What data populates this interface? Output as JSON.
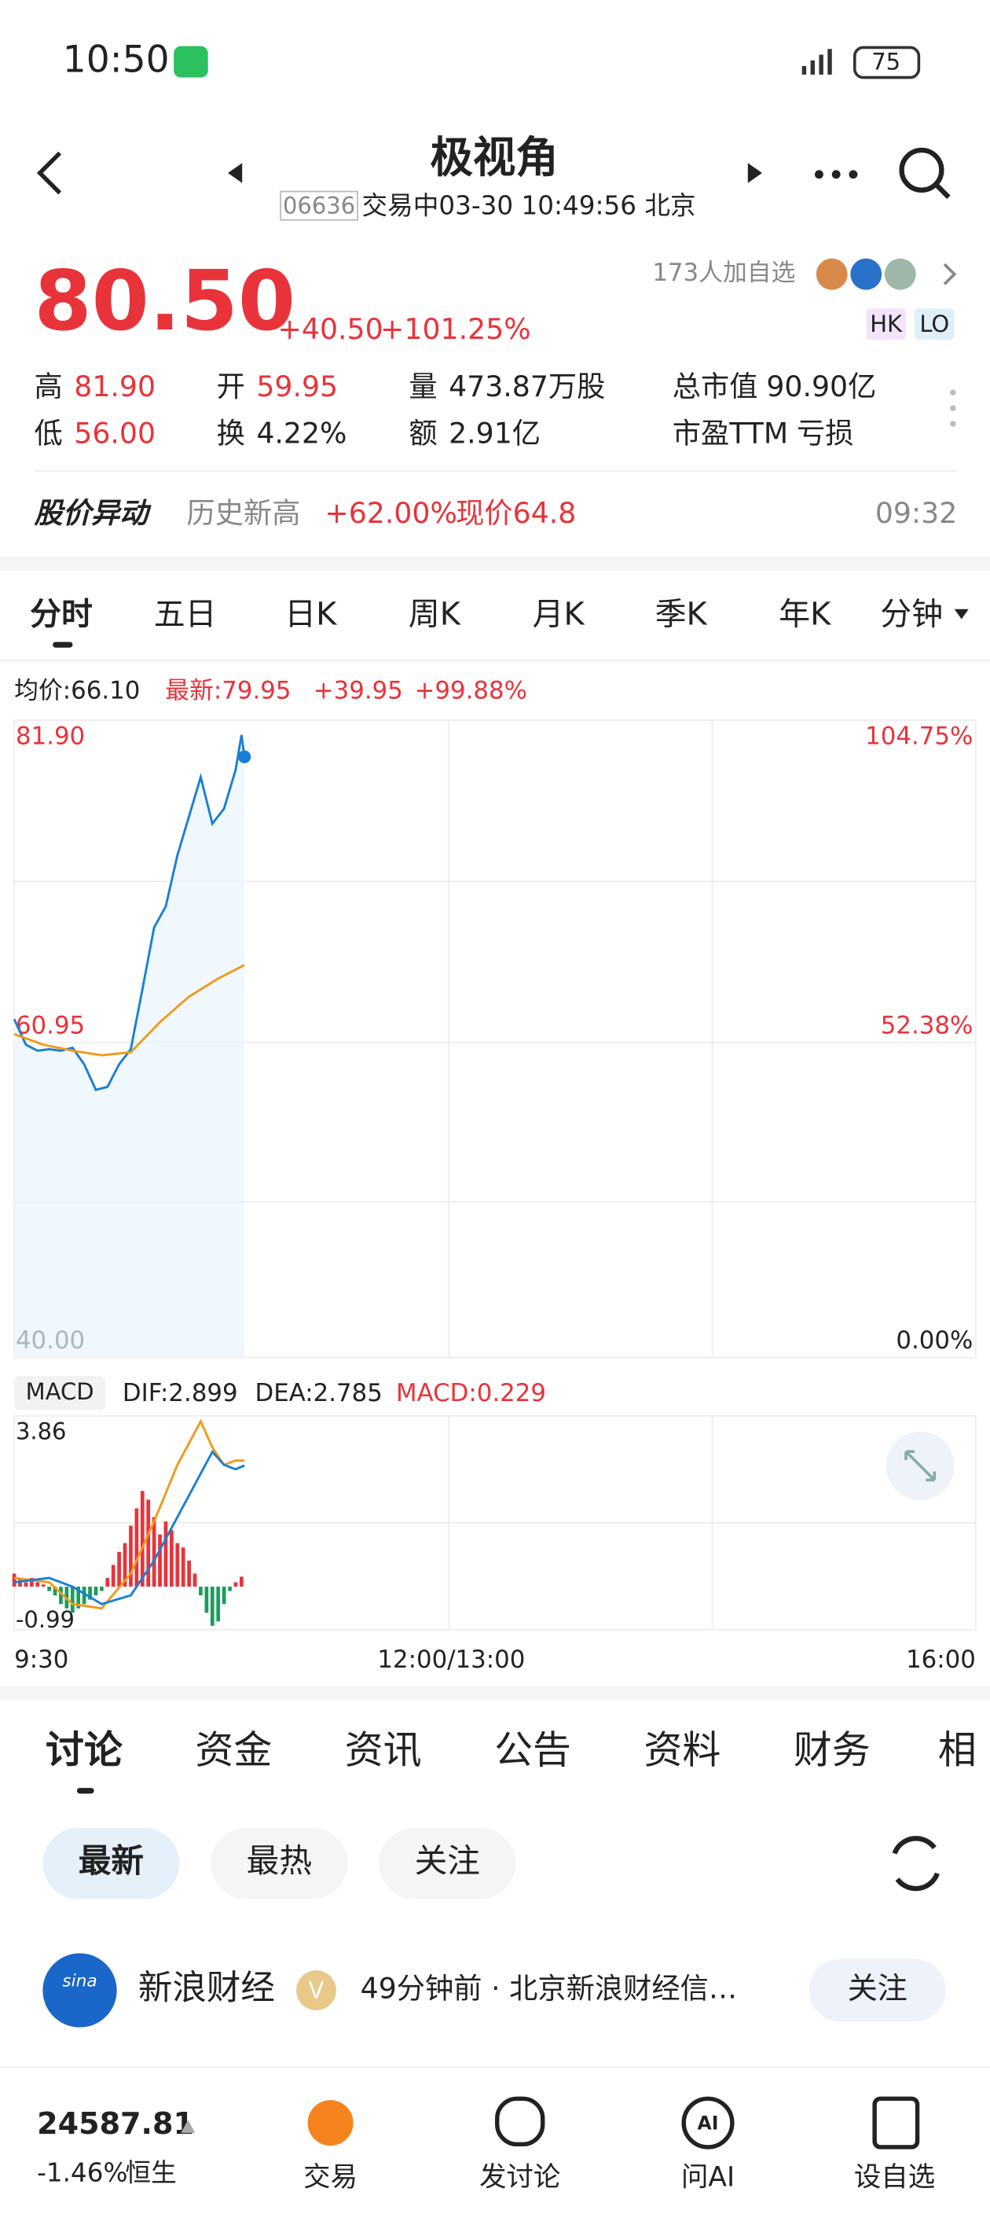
{
  "status_bar": {
    "time": "10:50",
    "battery": "75"
  },
  "header": {
    "title": "极视角",
    "code": "06636",
    "status": "交易中03-30 10:49:56 北京"
  },
  "watchers": "173人加自选",
  "badges": [
    "HK",
    "LO"
  ],
  "quote": {
    "price": "80.50",
    "change": "+40.50",
    "change_pct": "+101.25%",
    "stats": [
      {
        "label": "高",
        "value": "81.90"
      },
      {
        "label": "开",
        "value": "59.95"
      },
      {
        "label": "量",
        "value": "473.87万股"
      },
      {
        "label": "总市值",
        "value": "90.90亿"
      },
      {
        "label": "低",
        "value": "56.00"
      },
      {
        "label": "换",
        "value": "4.22%"
      },
      {
        "label": "额",
        "value": "2.91亿"
      },
      {
        "label": "市盈TTM",
        "value": "亏损"
      }
    ]
  },
  "alert": {
    "title": "股价异动",
    "text": "历史新高",
    "change": "+62.00%",
    "price": "现价64.8",
    "time": "09:32"
  },
  "chart_tabs": [
    "分时",
    "五日",
    "日K",
    "周K",
    "月K",
    "季K",
    "年K",
    "分钟"
  ],
  "intraday": {
    "type": "line",
    "legend": {
      "avg": "均价:66.10",
      "latest": "最新:79.95",
      "change": "+39.95",
      "change_pct": "+99.88%"
    },
    "xlim": [
      0,
      330
    ],
    "xticks": [
      {
        "value": 0,
        "label": "9:30"
      },
      {
        "value": 150,
        "label": "12:00/13:00"
      },
      {
        "value": 330,
        "label": "16:00"
      }
    ],
    "ylim": [
      40,
      81.9
    ],
    "yticks": [
      {
        "value": 40,
        "label": "40.00"
      },
      {
        "value": 60.95,
        "label": "60.95"
      },
      {
        "value": 81.9,
        "label": "81.90"
      }
    ],
    "y2lim": [
      0,
      104.75
    ],
    "y2ticks": [
      {
        "value": 0,
        "label": "0.00%"
      },
      {
        "value": 52.38,
        "label": "52.38%"
      },
      {
        "value": 104.75,
        "label": "104.75%"
      }
    ],
    "series": [
      {
        "color": "#1a7fd4",
        "x": [
          0,
          4,
          8,
          12,
          16,
          20,
          24,
          28,
          32,
          36,
          40,
          44,
          48,
          52,
          56,
          60,
          64,
          68,
          72,
          76,
          78,
          79
        ],
        "values": [
          62.5,
          60.8,
          60.4,
          60.5,
          60.4,
          60.6,
          59.5,
          57.8,
          58.0,
          59.5,
          60.5,
          64.5,
          68.6,
          70.0,
          73.4,
          76.0,
          78.6,
          75.5,
          76.5,
          79.1,
          81.4,
          79.95
        ]
      },
      {
        "color": "#f09a1a",
        "x": [
          0,
          10,
          20,
          30,
          40,
          50,
          60,
          70,
          79
        ],
        "values": [
          61.5,
          60.8,
          60.4,
          60.1,
          60.3,
          62.3,
          64.0,
          65.2,
          66.1
        ]
      }
    ]
  },
  "macd": {
    "type": "bar",
    "label": "MACD",
    "legend": {
      "dif": "DIF:2.899",
      "dea": "DEA:2.785",
      "macd": "MACD:0.229"
    },
    "ylim": [
      -0.99,
      3.86
    ],
    "yticks": [
      -0.99,
      3.86
    ],
    "up_color": "#e8333a",
    "down_color": "#1a9c5b",
    "x": [
      0,
      2,
      4,
      6,
      8,
      10,
      12,
      14,
      16,
      18,
      20,
      22,
      24,
      26,
      28,
      30,
      32,
      34,
      36,
      38,
      40,
      42,
      44,
      46,
      48,
      50,
      52,
      54,
      56,
      58,
      60,
      62,
      64,
      66,
      68,
      70,
      72,
      74,
      76,
      78
    ],
    "values": [
      0.3,
      0.2,
      0.1,
      0.2,
      0.1,
      0.05,
      -0.1,
      -0.2,
      -0.4,
      -0.5,
      -0.6,
      -0.5,
      -0.4,
      -0.3,
      -0.2,
      -0.1,
      0.2,
      0.5,
      0.8,
      1.0,
      1.4,
      1.8,
      2.2,
      2.0,
      1.6,
      1.2,
      1.5,
      1.3,
      1.0,
      0.9,
      0.6,
      0.3,
      -0.2,
      -0.6,
      -0.9,
      -0.8,
      -0.4,
      -0.1,
      0.1,
      0.229
    ],
    "dif": {
      "color": "#f09a1a",
      "x": [
        0,
        12,
        20,
        30,
        40,
        48,
        56,
        64,
        68,
        72,
        76,
        79
      ],
      "values": [
        0.2,
        0.1,
        -0.4,
        -0.5,
        0.3,
        1.5,
        2.8,
        3.8,
        3.2,
        2.8,
        2.9,
        2.899
      ]
    },
    "dea": {
      "color": "#1a7fd4",
      "x": [
        0,
        12,
        20,
        30,
        40,
        48,
        56,
        64,
        68,
        72,
        76,
        79
      ],
      "values": [
        0.1,
        0.2,
        0.0,
        -0.4,
        -0.2,
        0.6,
        1.6,
        2.6,
        3.1,
        2.8,
        2.7,
        2.785
      ]
    }
  },
  "content_tabs": [
    "讨论",
    "资金",
    "资讯",
    "公告",
    "资料",
    "财务",
    "相"
  ],
  "filters": [
    "最新",
    "最热",
    "关注"
  ],
  "post": {
    "source": "新浪财经",
    "logo": "sina",
    "verified": "V",
    "meta": "49分钟前 · 北京新浪财经信…",
    "follow": "关注"
  },
  "bottom_bar": {
    "index_value": "24587.81",
    "index_change": "-1.46%",
    "index_name": "恒生",
    "nav": [
      "交易",
      "发讨论",
      "问AI",
      "设自选"
    ],
    "ai_icon": "AI"
  }
}
